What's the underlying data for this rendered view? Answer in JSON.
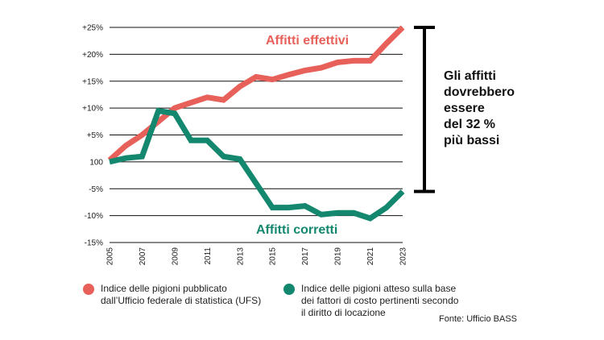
{
  "chart_data": {
    "type": "line",
    "x": [
      "2005",
      "2006",
      "2007",
      "2008",
      "2009",
      "2010",
      "2011",
      "2012",
      "2013",
      "2014",
      "2015",
      "2016",
      "2017",
      "2018",
      "2019",
      "2020",
      "2021",
      "2022",
      "2023"
    ],
    "x_tick_labels": [
      "2005",
      "2007",
      "2009",
      "2011",
      "2013",
      "2015",
      "2017",
      "2019",
      "2021",
      "2023"
    ],
    "y_tick_labels": [
      "+25%",
      "+20%",
      "+15%",
      "+10%",
      "+5%",
      "100",
      "-5%",
      "-10%",
      "-15%"
    ],
    "y_tick_values": [
      25,
      20,
      15,
      10,
      5,
      0,
      -5,
      -10,
      -15
    ],
    "ylim": [
      -15,
      25
    ],
    "series": [
      {
        "name": "Affitti effettivi",
        "color": "#e8605a",
        "values": [
          0.3,
          3,
          5,
          7.5,
          10,
          11,
          12,
          11.5,
          14,
          15.8,
          15.3,
          16.2,
          17,
          17.5,
          18.5,
          18.8,
          18.8,
          22,
          25
        ]
      },
      {
        "name": "Affitti corretti",
        "color": "#14876f",
        "values": [
          0,
          0.7,
          1,
          9.5,
          9,
          4,
          4,
          1,
          0.5,
          -4,
          -8.5,
          -8.5,
          -8.2,
          -9.8,
          -9.5,
          -9.5,
          -10.5,
          -8.5,
          -5.5
        ]
      }
    ],
    "annotation": "Gli affitti dovrebbero essere del 32 % più bassi",
    "annotation_lines": [
      "Gli affitti",
      "dovrebbero",
      "essere",
      "del 32 %",
      "più bassi"
    ],
    "legend": [
      {
        "color": "#e8605a",
        "lines": [
          "Indice delle pigioni pubblicato",
          "dall’Ufficio federale di statistica (UFS)"
        ]
      },
      {
        "color": "#14876f",
        "lines": [
          "Indice delle pigioni atteso sulla base",
          "dei fattori di costo pertinenti secondo",
          "il diritto di locazione"
        ]
      }
    ],
    "source": "Fonte: Ufficio BASS",
    "grid": true
  }
}
